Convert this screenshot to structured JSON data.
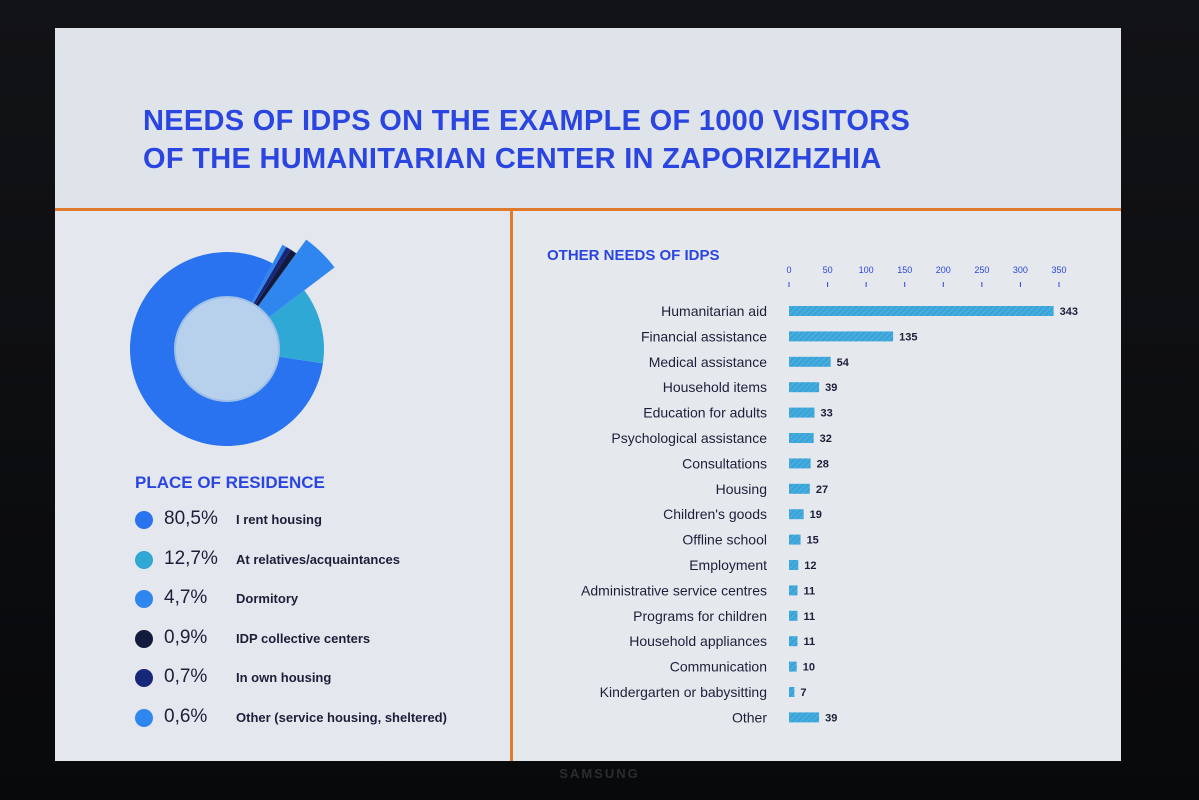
{
  "title_line1": "NEEDS OF IDPS ON THE EXAMPLE OF 1000 VISITORS",
  "title_line2": "OF THE HUMANITARIAN CENTER IN ZAPORIZHZHIA",
  "brand": "SAMSUNG",
  "colors": {
    "accent": "#2a45e0",
    "divider": "#e07a2c",
    "bar": "#3aa4d9"
  },
  "chart_data": [
    {
      "type": "pie",
      "title": "PLACE OF RESIDENCE",
      "slices": [
        {
          "label": "I rent housing",
          "pct_label": "80,5%",
          "value": 80.5,
          "color": "#2a73f0"
        },
        {
          "label": "At relatives/acquaintances",
          "pct_label": "12,7%",
          "value": 12.7,
          "color": "#2fa8d6"
        },
        {
          "label": "Dormitory",
          "pct_label": "4,7%",
          "value": 4.7,
          "color": "#2f86ee"
        },
        {
          "label": "IDP collective centers",
          "pct_label": "0,9%",
          "value": 0.9,
          "color": "#121a3d"
        },
        {
          "label": "In own housing",
          "pct_label": "0,7%",
          "value": 0.7,
          "color": "#17277a"
        },
        {
          "label": "Other (service housing, sheltered)",
          "pct_label": "0,6%",
          "value": 0.6,
          "color": "#2f86ee"
        }
      ]
    },
    {
      "type": "bar",
      "orientation": "horizontal",
      "title": "OTHER NEEDS OF IDPS",
      "xlim": [
        0,
        350
      ],
      "xticks": [
        0,
        50,
        100,
        150,
        200,
        250,
        300,
        350
      ],
      "categories": [
        "Humanitarian aid",
        "Financial assistance",
        "Medical assistance",
        "Household items",
        "Education for adults",
        "Psychological assistance",
        "Consultations",
        "Housing",
        "Children's goods",
        "Offline school",
        "Employment",
        "Administrative service centres",
        "Programs for children",
        "Household appliances",
        "Communication",
        "Kindergarten or babysitting",
        "Other"
      ],
      "values": [
        343,
        135,
        54,
        39,
        33,
        32,
        28,
        27,
        19,
        15,
        12,
        11,
        11,
        11,
        10,
        7,
        39
      ]
    }
  ]
}
